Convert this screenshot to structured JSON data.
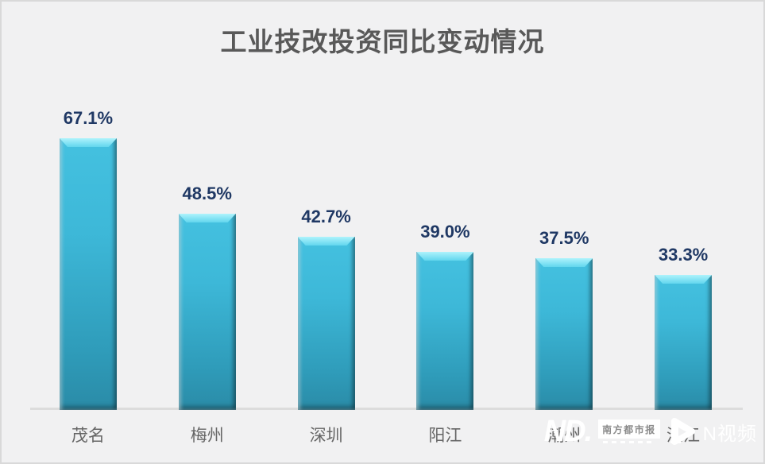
{
  "page": {
    "background": "#f1f1f2",
    "frame_border_color": "#d9d9d9"
  },
  "chart_data": {
    "type": "bar",
    "title": "工业技改投资同比变动情况",
    "categories": [
      "茂名",
      "梅州",
      "深圳",
      "阳江",
      "潮州",
      "湛江"
    ],
    "values": [
      67.1,
      48.5,
      42.7,
      39.0,
      37.5,
      33.3
    ],
    "value_labels": [
      "67.1%",
      "48.5%",
      "42.7%",
      "39.0%",
      "37.5%",
      "33.3%"
    ],
    "unit": "%",
    "ylim": [
      0,
      70
    ],
    "grid": false,
    "legend": false,
    "bar_color": "#3db8d8",
    "bar_bevel_light": "#aef3fc",
    "bar_bottom_dark": "#2a8ba7",
    "value_label_color": "#1f3864",
    "category_label_color": "#666666",
    "title_color": "#595959",
    "axis_line_color": "#dcdcdc"
  },
  "watermark": {
    "logo_text": "ND.",
    "badge_text": "南方都市报",
    "video_text": "N视频",
    "color": "#ffffff"
  }
}
